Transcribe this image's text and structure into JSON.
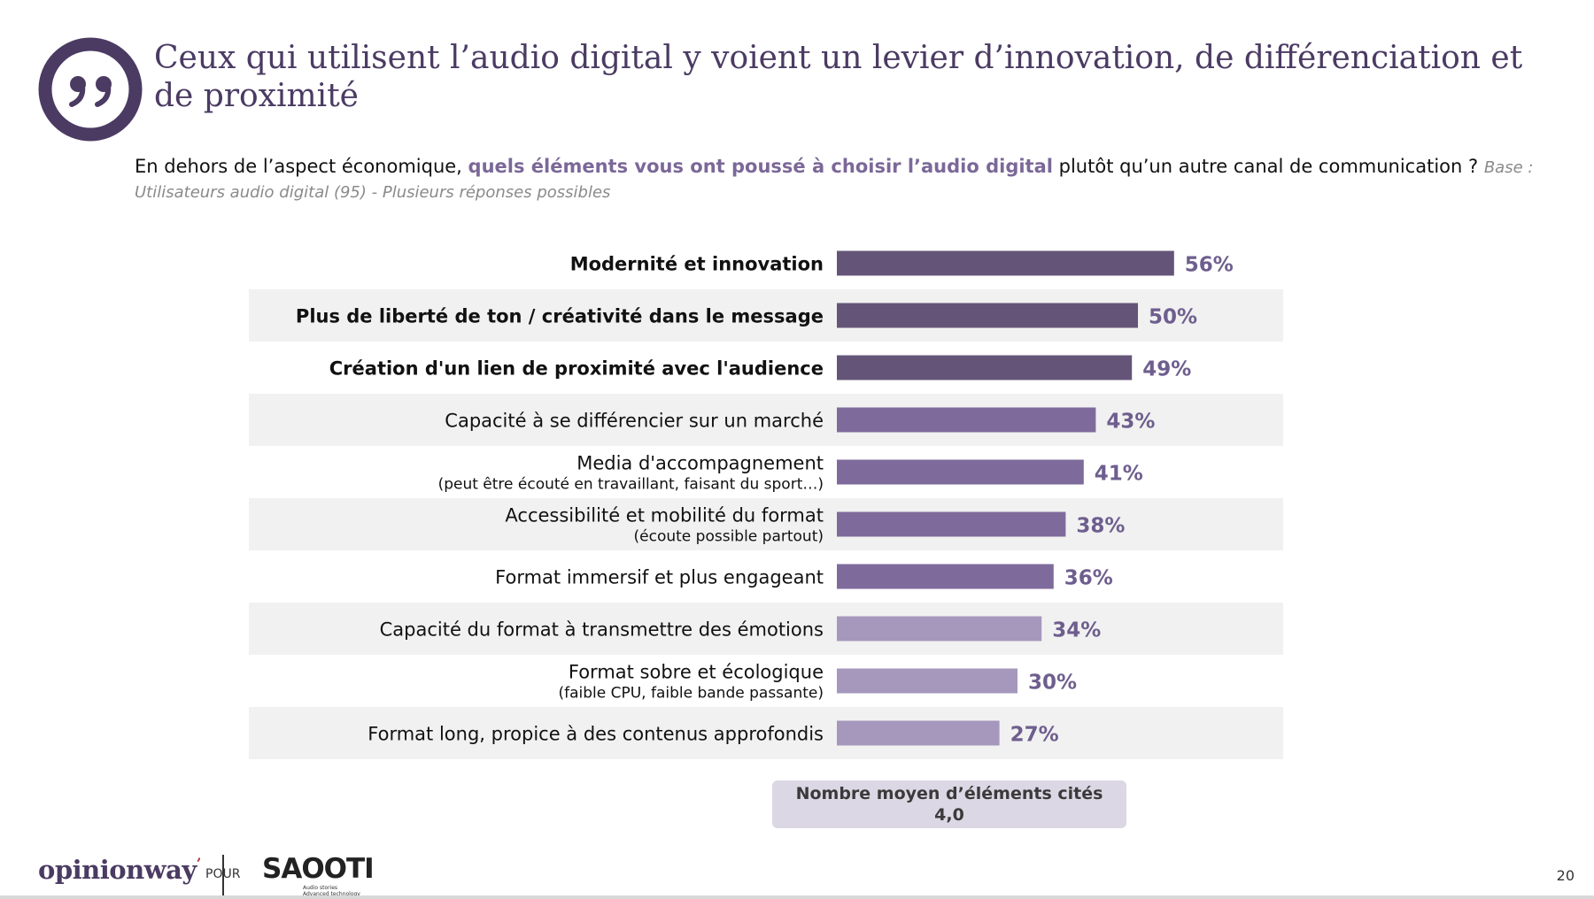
{
  "title": "Ceux qui utilisent l’audio digital y voient un levier d’innovation, de différenciation et de proximité",
  "subtitle": {
    "part1": "En dehors de l’aspect économique, ",
    "highlight": "quels éléments vous ont poussé à choisir l’audio digital",
    "part2": " plutôt qu’un autre canal de communication ? ",
    "base": "Base : Utilisateurs audio digital (95) - Plusieurs réponses possibles"
  },
  "colors": {
    "dark": "#645578",
    "mid": "#7e6b9b",
    "light": "#a598bc",
    "value": "#6e5e8e",
    "band": "#f1f1f1",
    "title": "#4b3b63"
  },
  "chart_data": {
    "type": "bar",
    "orientation": "horizontal",
    "categories": [
      "Modernité et innovation",
      "Plus de liberté de ton / créativité dans le message",
      "Création d'un lien de proximité avec l'audience",
      "Capacité à se différencier sur un marché",
      "Media d'accompagnement",
      "Accessibilité et mobilité du format",
      "Format immersif et plus engageant",
      "Capacité du format à transmettre des émotions",
      "Format sobre et écologique",
      "Format long, propice à des contenus approfondis"
    ],
    "notes": [
      "",
      "",
      "",
      "",
      "(peut être écouté en travaillant, faisant du sport…)",
      "(écoute possible partout)",
      "",
      "",
      "(faible CPU, faible bande passante)",
      ""
    ],
    "values": [
      56,
      50,
      49,
      43,
      41,
      38,
      36,
      34,
      30,
      27
    ],
    "value_labels": [
      "56%",
      "50%",
      "49%",
      "43%",
      "41%",
      "38%",
      "36%",
      "34%",
      "30%",
      "27%"
    ],
    "emphasis": [
      true,
      true,
      true,
      false,
      false,
      false,
      false,
      false,
      false,
      false
    ],
    "tone": [
      "dark",
      "dark",
      "dark",
      "mid",
      "mid",
      "mid",
      "mid",
      "light",
      "light",
      "light"
    ],
    "unit": "%",
    "xlim": [
      0,
      100
    ]
  },
  "average": {
    "label": "Nombre moyen d’éléments cités",
    "value": "4,0"
  },
  "footer": {
    "brand": "opinionway",
    "pour": "POUR",
    "partner": "SAOOTI",
    "partner_tagline_1": "Audio stories",
    "partner_tagline_2": "Advanced technology",
    "page_number": "20"
  }
}
